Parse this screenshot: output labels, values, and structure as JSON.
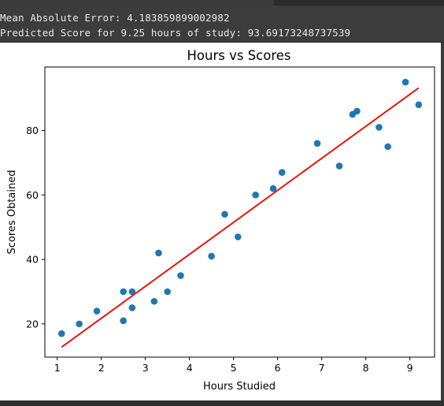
{
  "console": {
    "mae_line": "Mean Absolute Error: 4.183859899002982",
    "prediction_line": "Predicted Score for 9.25 hours of study: 93.69173248737539"
  },
  "chart_data": {
    "type": "scatter",
    "title": "Hours vs Scores",
    "xlabel": "Hours Studied",
    "ylabel": "Scores Obtained",
    "xlim": [
      0.72,
      9.56
    ],
    "ylim": [
      9.7,
      99.7
    ],
    "xticks": [
      1,
      2,
      3,
      4,
      5,
      6,
      7,
      8,
      9
    ],
    "yticks": [
      20,
      40,
      60,
      80
    ],
    "grid": false,
    "colors": {
      "points": "#1f77b4",
      "line": "#e3170a"
    },
    "points": [
      {
        "x": 2.5,
        "y": 21
      },
      {
        "x": 5.1,
        "y": 47
      },
      {
        "x": 3.2,
        "y": 27
      },
      {
        "x": 8.5,
        "y": 75
      },
      {
        "x": 3.5,
        "y": 30
      },
      {
        "x": 1.5,
        "y": 20
      },
      {
        "x": 9.2,
        "y": 88
      },
      {
        "x": 5.5,
        "y": 60
      },
      {
        "x": 8.3,
        "y": 81
      },
      {
        "x": 2.7,
        "y": 25
      },
      {
        "x": 7.7,
        "y": 85
      },
      {
        "x": 5.9,
        "y": 62
      },
      {
        "x": 4.5,
        "y": 41
      },
      {
        "x": 3.3,
        "y": 42
      },
      {
        "x": 1.1,
        "y": 17
      },
      {
        "x": 8.9,
        "y": 95
      },
      {
        "x": 2.5,
        "y": 30
      },
      {
        "x": 1.9,
        "y": 24
      },
      {
        "x": 6.1,
        "y": 67
      },
      {
        "x": 7.4,
        "y": 69
      },
      {
        "x": 2.7,
        "y": 30
      },
      {
        "x": 4.8,
        "y": 54
      },
      {
        "x": 3.8,
        "y": 35
      },
      {
        "x": 6.9,
        "y": 76
      },
      {
        "x": 7.8,
        "y": 86
      }
    ],
    "regression_line": {
      "x": [
        1.1,
        9.2
      ],
      "y": [
        12.8,
        93.2
      ]
    }
  }
}
